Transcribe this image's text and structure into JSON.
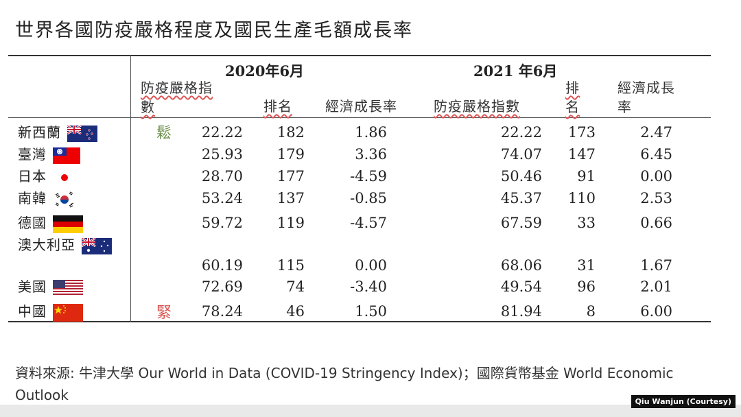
{
  "title": "世界各國防疫嚴格程度及國民生產毛額成長率",
  "headers": {
    "year_2020": "2020年6月",
    "year_2021": "2021 年6月",
    "stringency_2020_line1": "防疫嚴格指",
    "stringency_2020_line2": "數",
    "rank_2020": "排名",
    "growth_2020": "經濟成長率",
    "stringency_2021": "防疫嚴格指數",
    "rank_2021_line1": "排",
    "rank_2021_line2": "名",
    "growth_2021_line1": "經濟成長",
    "growth_2021_line2": "率"
  },
  "scale_labels": {
    "loose": "鬆",
    "tight": "緊"
  },
  "rows": [
    {
      "country": "新西蘭",
      "flag": "new-zealand",
      "s2020": "22.22",
      "r2020": "182",
      "g2020": "1.86",
      "s2021": "22.22",
      "r2021": "173",
      "g2021": "2.47"
    },
    {
      "country": "臺灣",
      "flag": "taiwan",
      "s2020": "25.93",
      "r2020": "179",
      "g2020": "3.36",
      "s2021": "74.07",
      "r2021": "147",
      "g2021": "6.45"
    },
    {
      "country": "日本",
      "flag": "japan",
      "s2020": "28.70",
      "r2020": "177",
      "g2020": "-4.59",
      "s2021": "50.46",
      "r2021": "91",
      "g2021": "0.00"
    },
    {
      "country": "南韓",
      "flag": "south-korea",
      "s2020": "53.24",
      "r2020": "137",
      "g2020": "-0.85",
      "s2021": "45.37",
      "r2021": "110",
      "g2021": "2.53"
    },
    {
      "country": "德國",
      "flag": "germany",
      "s2020": "59.72",
      "r2020": "119",
      "g2020": "-4.57",
      "s2021": "67.59",
      "r2021": "33",
      "g2021": "0.66"
    },
    {
      "country": "澳大利亞",
      "flag": "australia",
      "s2020": "60.19",
      "r2020": "115",
      "g2020": "0.00",
      "s2021": "68.06",
      "r2021": "31",
      "g2021": "1.67"
    },
    {
      "country": "美國",
      "flag": "usa",
      "s2020": "72.69",
      "r2020": "74",
      "g2020": "-3.40",
      "s2021": "49.54",
      "r2021": "96",
      "g2021": "2.01"
    },
    {
      "country": "中國",
      "flag": "china",
      "s2020": "78.24",
      "r2020": "46",
      "g2020": "1.50",
      "s2021": "81.94",
      "r2021": "8",
      "g2021": "6.00"
    }
  ],
  "source": "資料來源: 牛津大學 Our World in Data (COVID-19 Stringency Index)；國際貨幣基金 World Economic Outlook",
  "credit": "Qiu Wanjun (Courtesy)"
}
